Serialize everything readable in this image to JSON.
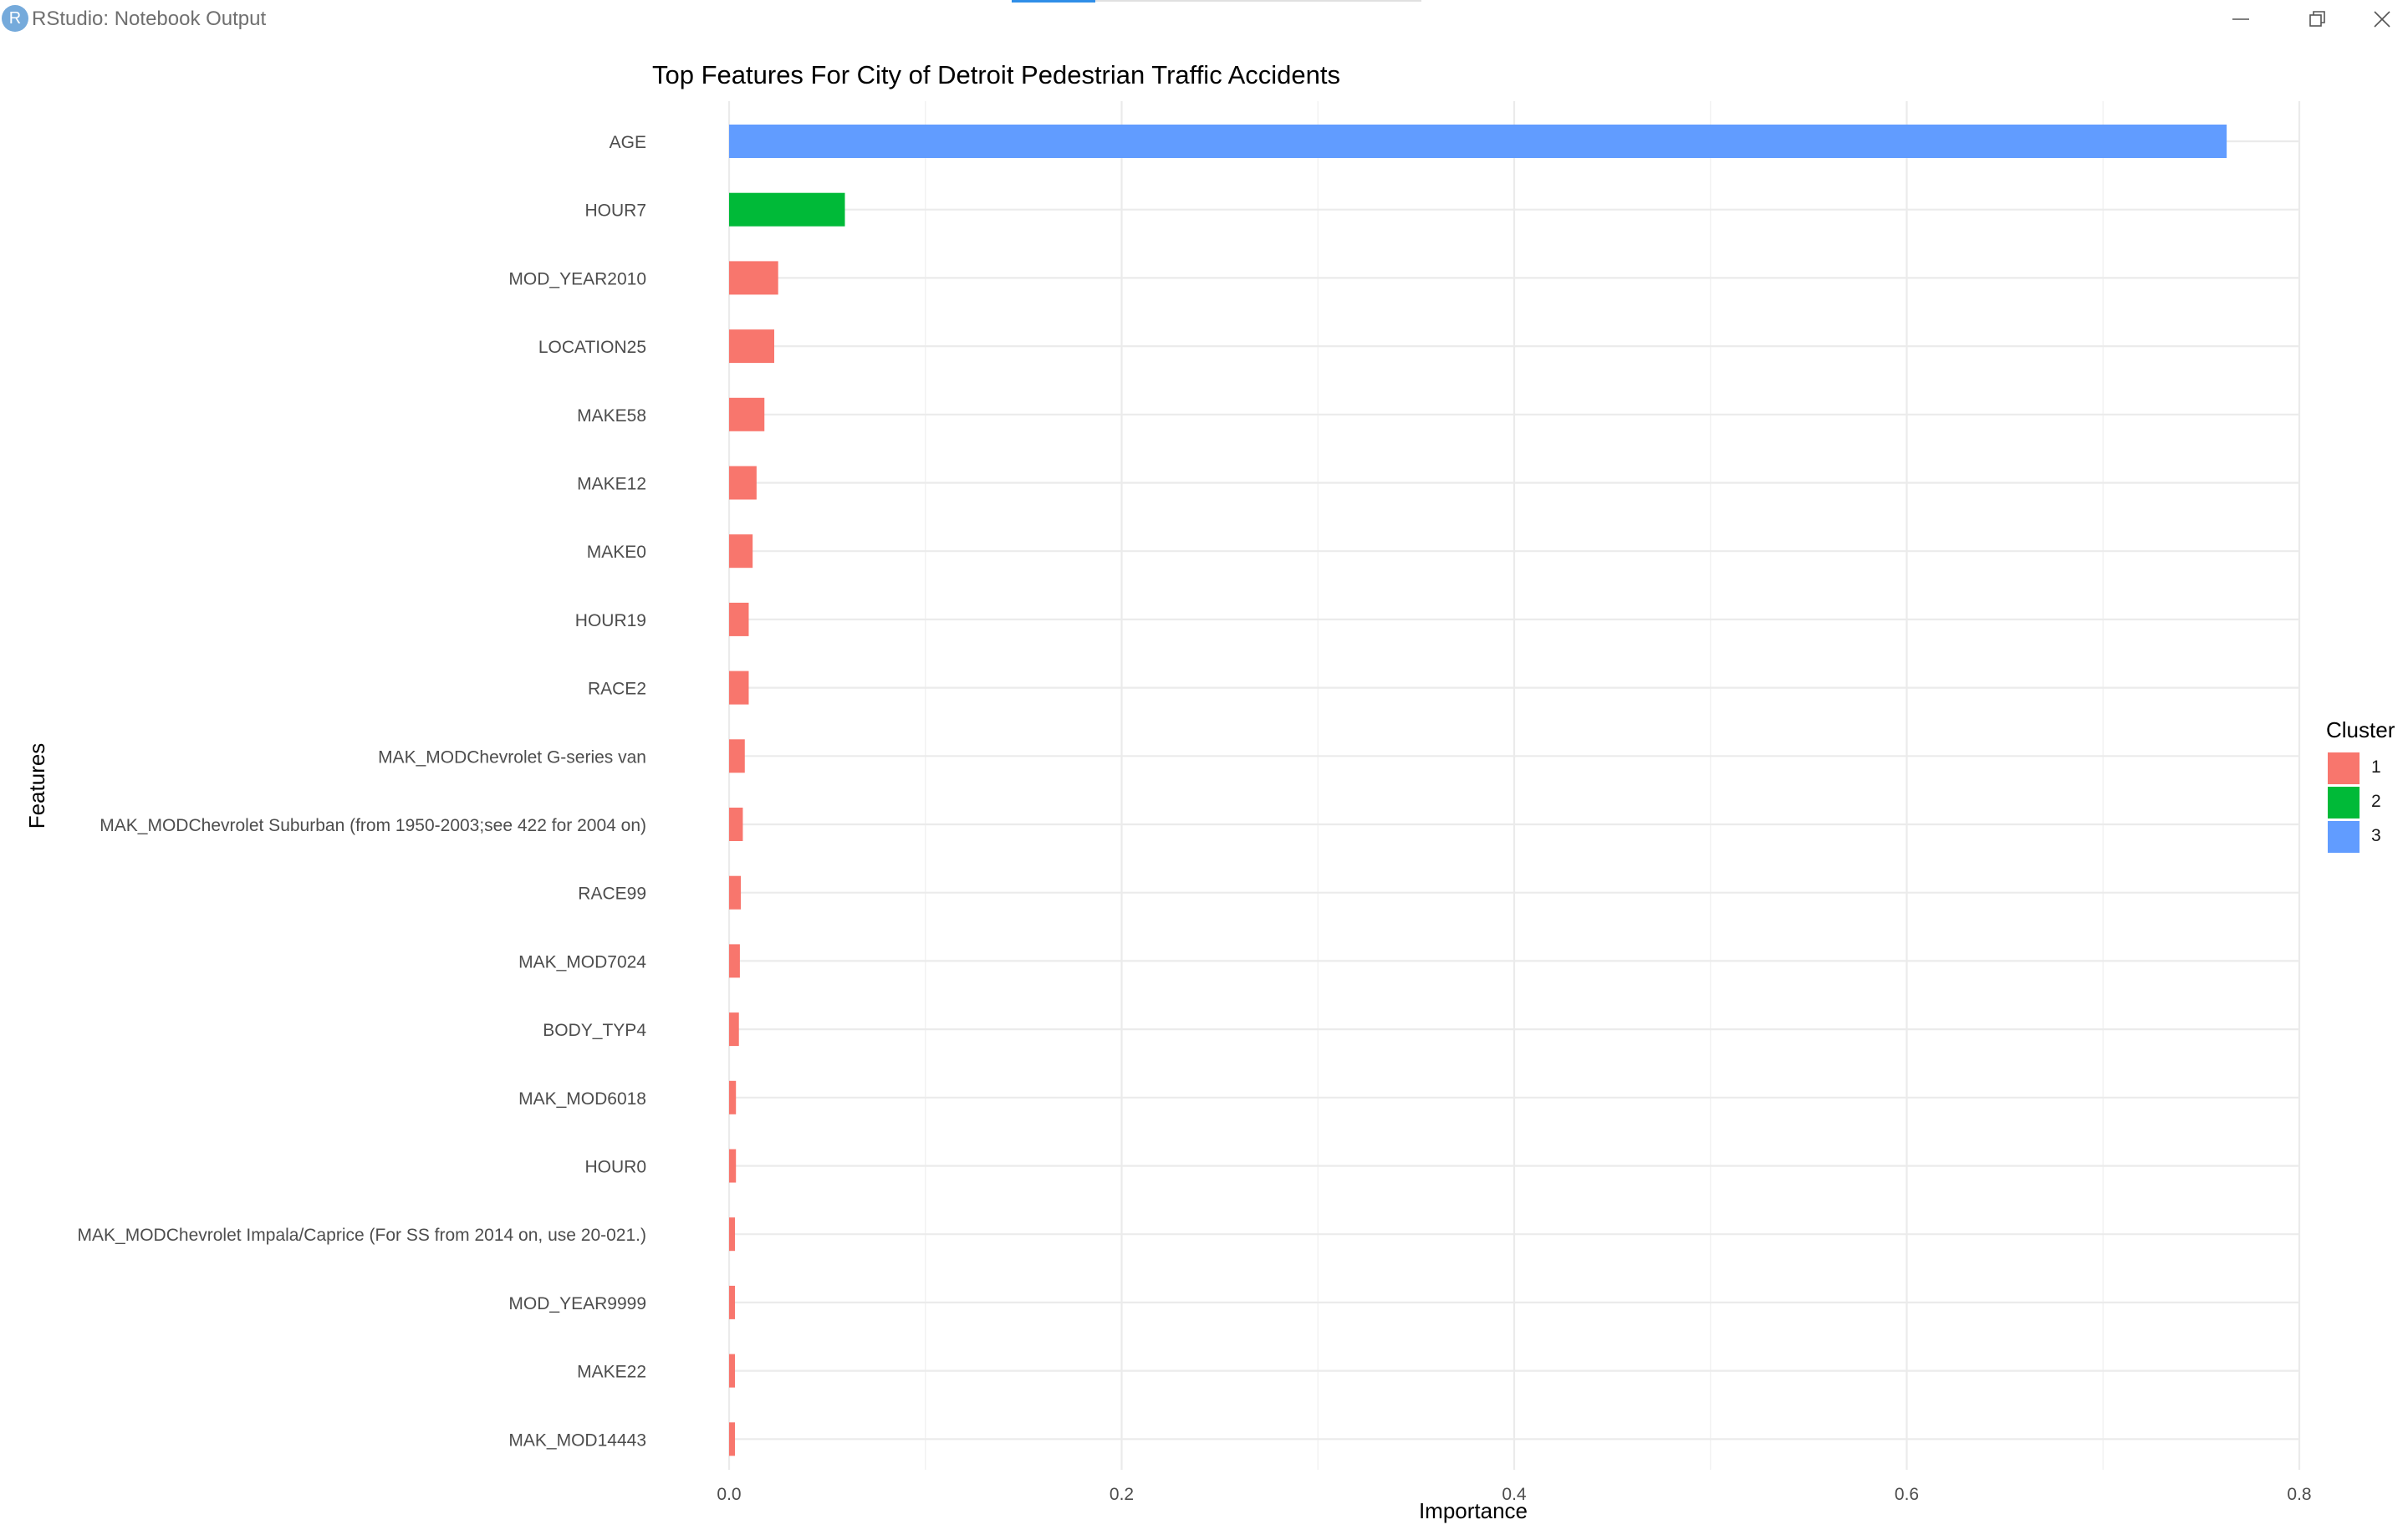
{
  "window": {
    "title": "RStudio: Notebook Output",
    "app_icon_letter": "R"
  },
  "legend": {
    "title": "Cluster",
    "items": [
      {
        "label": "1",
        "color": "#f8766d"
      },
      {
        "label": "2",
        "color": "#00ba38"
      },
      {
        "label": "3",
        "color": "#619cff"
      }
    ]
  },
  "chart_data": {
    "type": "bar",
    "orientation": "horizontal",
    "title": "Top Features For City of Detroit Pedestrian Traffic Accidents",
    "xlabel": "Importance",
    "ylabel": "Features",
    "xlim": [
      0,
      0.8
    ],
    "xticks": [
      "0.0",
      "0.2",
      "0.4",
      "0.6",
      "0.8"
    ],
    "grid": true,
    "legend_position": "right",
    "categories": [
      "AGE",
      "HOUR7",
      "MOD_YEAR2010",
      "LOCATION25",
      "MAKE58",
      "MAKE12",
      "MAKE0",
      "HOUR19",
      "RACE2",
      "MAK_MODChevrolet G-series van",
      "MAK_MODChevrolet Suburban (from 1950-2003;see 422 for 2004 on)",
      "RACE99",
      "MAK_MOD7024",
      "BODY_TYP4",
      "MAK_MOD6018",
      "HOUR0",
      "MAK_MODChevrolet Impala/Caprice (For SS from 2014 on, use 20-021.)",
      "MOD_YEAR9999",
      "MAKE22",
      "MAK_MOD14443"
    ],
    "values": [
      0.763,
      0.059,
      0.025,
      0.023,
      0.018,
      0.014,
      0.012,
      0.01,
      0.01,
      0.008,
      0.007,
      0.006,
      0.0055,
      0.005,
      0.0035,
      0.0035,
      0.003,
      0.003,
      0.003,
      0.003
    ],
    "cluster": [
      "3",
      "2",
      "1",
      "1",
      "1",
      "1",
      "1",
      "1",
      "1",
      "1",
      "1",
      "1",
      "1",
      "1",
      "1",
      "1",
      "1",
      "1",
      "1",
      "1"
    ]
  }
}
